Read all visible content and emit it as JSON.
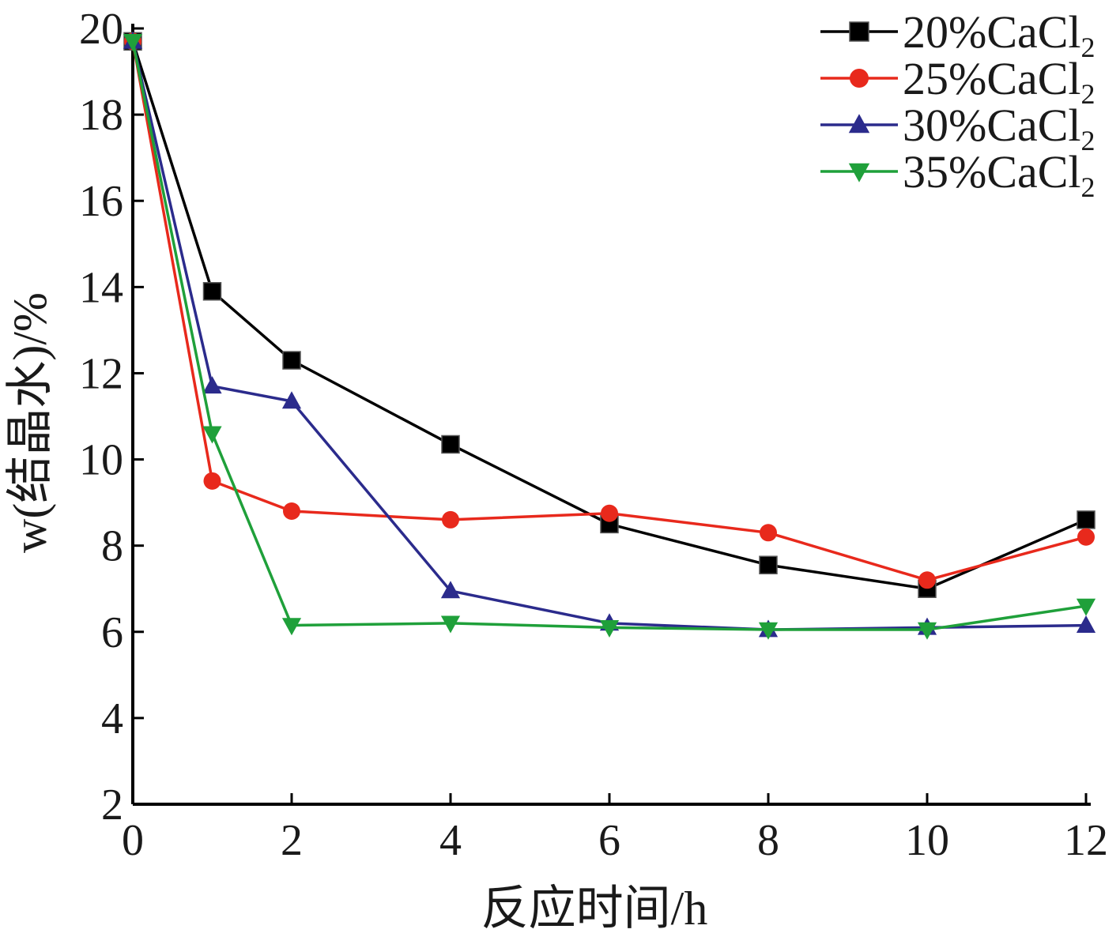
{
  "chart_data": {
    "type": "line",
    "xlabel": "反应时间/h",
    "ylabel": "w(结晶水)/%",
    "xlim": [
      0,
      12
    ],
    "ylim": [
      2,
      20
    ],
    "x_ticks": [
      "0",
      "2",
      "4",
      "6",
      "8",
      "10",
      "12"
    ],
    "y_ticks": [
      "2",
      "4",
      "6",
      "8",
      "10",
      "12",
      "14",
      "16",
      "18",
      "20"
    ],
    "x": [
      0,
      1,
      2,
      4,
      6,
      8,
      10,
      12
    ],
    "grid": false,
    "legend_position": "top-right",
    "series": [
      {
        "name": "20%CaCl",
        "name_sub": "2",
        "color": "#000000",
        "marker": "square",
        "values": [
          19.7,
          13.9,
          12.3,
          10.35,
          8.5,
          7.55,
          7.0,
          8.6
        ]
      },
      {
        "name": "25%CaCl",
        "name_sub": "2",
        "color": "#e8291c",
        "marker": "circle",
        "values": [
          19.7,
          9.5,
          8.8,
          8.6,
          8.75,
          8.3,
          7.2,
          8.2
        ]
      },
      {
        "name": "30%CaCl",
        "name_sub": "2",
        "color": "#2b2b8c",
        "marker": "triangle-up",
        "values": [
          19.7,
          11.7,
          11.35,
          6.95,
          6.2,
          6.05,
          6.1,
          6.15
        ]
      },
      {
        "name": "35%CaCl",
        "name_sub": "2",
        "color": "#1fa03a",
        "marker": "triangle-down",
        "values": [
          19.7,
          10.6,
          6.15,
          6.2,
          6.1,
          6.05,
          6.05,
          6.6
        ]
      }
    ]
  }
}
